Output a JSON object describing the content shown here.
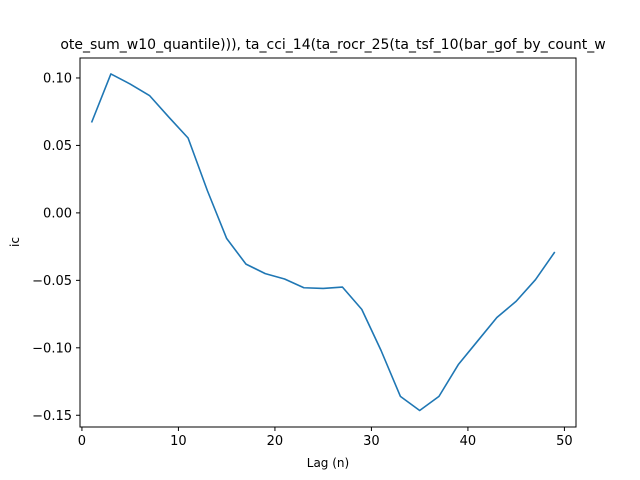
{
  "chart_data": {
    "type": "line",
    "title": "ote_sum_w10_quantile))), ta_cci_14(ta_rocr_25(ta_tsf_10(bar_gof_by_count_w",
    "xlabel": "Lag (n)",
    "ylabel": "ic",
    "xlim": [
      -0.2,
      51.2
    ],
    "ylim": [
      -0.1587,
      0.1148
    ],
    "x_ticks": [
      0,
      10,
      20,
      30,
      40,
      50
    ],
    "x_tick_labels": [
      "0",
      "10",
      "20",
      "30",
      "40",
      "50"
    ],
    "y_ticks": [
      -0.15,
      -0.1,
      -0.05,
      0.0,
      0.05,
      0.1
    ],
    "y_tick_labels": [
      "−0.15",
      "−0.10",
      "−0.05",
      "0.00",
      "0.05",
      "0.10"
    ],
    "grid": false,
    "legend": "none",
    "series": [
      {
        "color": "#1f77b4",
        "x": [
          1,
          3,
          5,
          7,
          9,
          11,
          13,
          15,
          17,
          19,
          21,
          23,
          25,
          27,
          29,
          31,
          33,
          35,
          37,
          39,
          41,
          43,
          45,
          47,
          49
        ],
        "y": [
          0.067,
          0.103,
          0.0955,
          0.087,
          0.071,
          0.0555,
          0.0165,
          -0.019,
          -0.038,
          -0.045,
          -0.049,
          -0.0555,
          -0.056,
          -0.055,
          -0.0715,
          -0.102,
          -0.136,
          -0.1465,
          -0.136,
          -0.1125,
          -0.095,
          -0.0775,
          -0.0655,
          -0.0495,
          -0.029
        ]
      }
    ]
  }
}
